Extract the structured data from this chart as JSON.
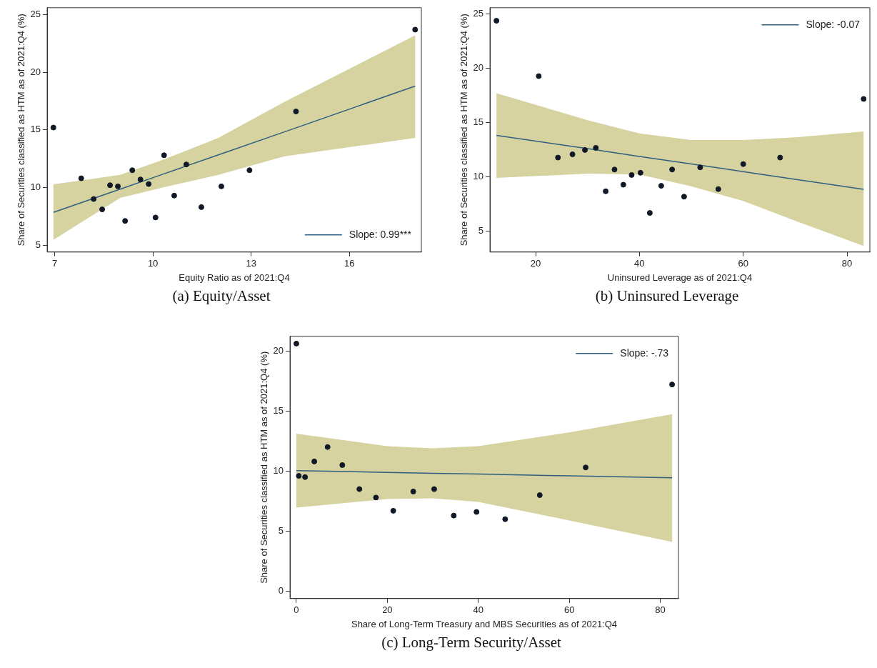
{
  "chart_data": [
    {
      "type": "scatter",
      "title": "(a) Equity/Asset",
      "xlabel": "Equity Ratio as of 2021:Q4",
      "ylabel": "Share of Securities classified as HTM as of 2021:Q4 (%)",
      "xlim": [
        6.77,
        18.2
      ],
      "xticks": [
        7,
        10,
        13,
        16
      ],
      "ylim": [
        4.4,
        25.6
      ],
      "yticks": [
        5,
        10,
        15,
        20,
        25
      ],
      "legend": "bottom right",
      "series": [
        {
          "marker": "circle",
          "color": "#111827",
          "x": [
            6.96,
            7.81,
            8.19,
            8.45,
            8.69,
            8.93,
            9.15,
            9.37,
            9.62,
            9.87,
            10.08,
            10.34,
            10.65,
            11.02,
            11.48,
            12.09,
            12.95,
            14.37,
            18.01
          ],
          "values": [
            15.2,
            10.8,
            9.0,
            8.1,
            10.2,
            10.1,
            7.1,
            11.5,
            10.7,
            10.3,
            7.4,
            12.8,
            9.3,
            12.0,
            8.3,
            10.1,
            11.5,
            16.6,
            23.7
          ]
        },
        {
          "type": "line",
          "marker": "none",
          "name": "Slope: 0.99***",
          "color": "#2f5f7f",
          "x": [
            6.96,
            9,
            10.3,
            12,
            14,
            18.01
          ],
          "values": [
            7.84,
            9.86,
            11.15,
            12.83,
            14.81,
            18.8
          ],
          "lower": [
            5.45,
            9.1,
            10.0,
            11.1,
            12.7,
            14.3
          ],
          "upper": [
            10.27,
            11.1,
            12.4,
            14.3,
            17.4,
            23.2
          ]
        }
      ]
    },
    {
      "type": "scatter",
      "title": "(b) Uninsured Leverage",
      "xlabel": "Uninsured Leverage as of 2021:Q4",
      "ylabel": "Share of Securities classified as HTM as of 2021:Q4 (%)",
      "xlim": [
        11.2,
        84.4
      ],
      "xticks": [
        20,
        40,
        60,
        80
      ],
      "ylim": [
        3.1,
        25.6
      ],
      "yticks": [
        5,
        10,
        15,
        20,
        25
      ],
      "legend": "top right",
      "series": [
        {
          "marker": "circle",
          "color": "#111827",
          "x": [
            12.45,
            20.6,
            24.3,
            27.1,
            29.5,
            31.6,
            33.5,
            35.2,
            36.9,
            38.5,
            40.2,
            42.0,
            44.2,
            46.3,
            48.6,
            51.7,
            55.2,
            60.0,
            67.1,
            83.2
          ],
          "values": [
            24.4,
            19.3,
            11.8,
            12.1,
            12.5,
            12.7,
            8.7,
            10.7,
            9.3,
            10.2,
            10.4,
            6.7,
            9.2,
            10.7,
            8.2,
            10.9,
            8.9,
            11.2,
            11.8,
            17.2
          ]
        },
        {
          "type": "line",
          "marker": "none",
          "name": "Slope: -0.07",
          "color": "#2f5f7f",
          "x": [
            12.45,
            30,
            40,
            50,
            60,
            70,
            83.2
          ],
          "values": [
            13.85,
            12.62,
            11.91,
            11.21,
            10.51,
            9.8,
            8.88
          ],
          "lower": [
            9.93,
            10.32,
            10.24,
            9.15,
            7.8,
            5.98,
            3.66
          ],
          "upper": [
            17.73,
            15.24,
            14.02,
            13.41,
            13.41,
            13.66,
            14.2
          ]
        }
      ]
    },
    {
      "type": "scatter",
      "title": "(c) Long-Term Security/Asset",
      "xlabel": "Share of Long-Term Treasury and MBS Securities as of 2021:Q4",
      "ylabel": "Share of Securities classified as HTM as of 2021:Q4 (%)",
      "xlim": [
        -1.4,
        84
      ],
      "xticks": [
        0,
        20,
        40,
        60,
        80
      ],
      "ylim": [
        -0.6,
        21.2
      ],
      "yticks": [
        0,
        5,
        10,
        15,
        20
      ],
      "legend": "top right",
      "series": [
        {
          "marker": "circle",
          "color": "#111827",
          "x": [
            0.0,
            0.54,
            1.91,
            3.94,
            6.87,
            10.1,
            13.85,
            17.5,
            21.3,
            25.7,
            30.3,
            34.6,
            39.6,
            45.9,
            53.5,
            63.6,
            82.6
          ],
          "values": [
            20.6,
            9.6,
            9.5,
            10.8,
            12.0,
            10.5,
            8.5,
            7.8,
            6.7,
            8.3,
            8.5,
            6.3,
            6.6,
            6.0,
            8.0,
            10.3,
            17.2
          ]
        },
        {
          "type": "line",
          "marker": "none",
          "name": "Slope: -.73",
          "color": "#2f5f7f",
          "x": [
            0,
            20,
            30,
            40,
            60,
            82.6
          ],
          "values": [
            10.04,
            9.89,
            9.82,
            9.75,
            9.6,
            9.44
          ],
          "lower": [
            6.96,
            7.67,
            7.73,
            7.44,
            5.89,
            4.11
          ],
          "upper": [
            13.11,
            12.07,
            11.89,
            12.07,
            13.22,
            14.73
          ]
        }
      ]
    }
  ]
}
